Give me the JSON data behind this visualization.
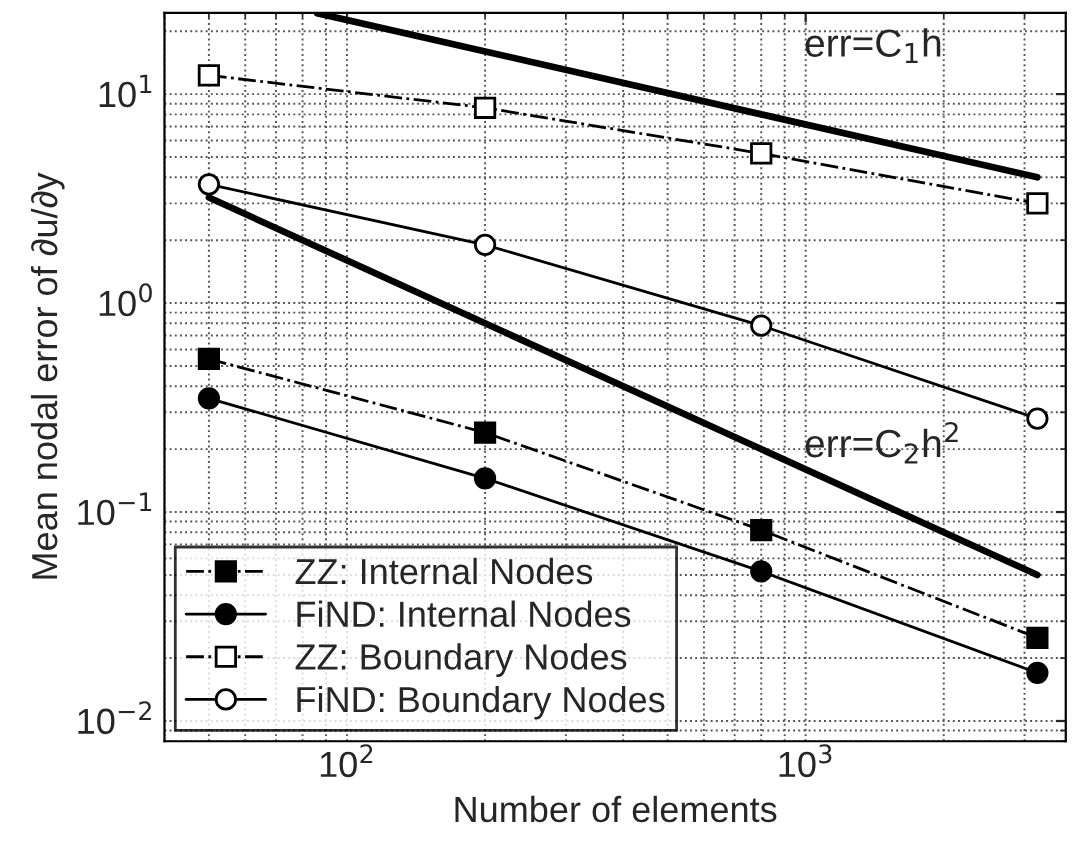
{
  "chart_data": {
    "type": "line",
    "xlabel": "Number of elements",
    "ylabel": "Mean nodal error of ∂u/∂y",
    "log": "xy",
    "grid": true,
    "legend": "bottom left",
    "xlim": [
      40,
      3690
    ],
    "ylim": [
      0.008,
      24.5
    ],
    "xticks": [
      {
        "value": 100,
        "label": "10$^{2}$"
      },
      {
        "value": 1000,
        "label": "10$^{3}$"
      }
    ],
    "yticks": [
      {
        "value": 0.01,
        "label": "10$^{−2}$"
      },
      {
        "value": 0.1,
        "label": "10$^{−1}$"
      },
      {
        "value": 1,
        "label": "10$^{0}$"
      },
      {
        "value": 10,
        "label": "10$^{1}$"
      }
    ],
    "x": [
      50,
      200,
      800,
      3200
    ],
    "series": [
      {
        "name": "ZZ: Internal Nodes",
        "color": "#000000",
        "marker": "square",
        "line_style": "dashdot",
        "values": [
          0.54,
          0.24,
          0.082,
          0.025
        ]
      },
      {
        "name": "FiND: Internal Nodes",
        "color": "#000000",
        "marker": "circle",
        "line_style": "solid",
        "values": [
          0.35,
          0.145,
          0.052,
          0.017
        ]
      },
      {
        "name": "ZZ: Boundary Nodes",
        "color": "#000000",
        "marker": "square",
        "line_style": "dashdot",
        "values": [
          12.3,
          8.6,
          5.2,
          3.0
        ]
      },
      {
        "name": "FiND: Boundary Nodes",
        "color": "#000000",
        "marker": "circle",
        "line_style": "solid",
        "values": [
          3.7,
          1.9,
          0.78,
          0.28
        ]
      },
      {
        "color": "#000000",
        "marker": "none",
        "line_style": "solid",
        "x": [
          86,
          3200
        ],
        "values": [
          24.4,
          4.0
        ]
      },
      {
        "color": "#000000",
        "marker": "none",
        "line_style": "solid",
        "x": [
          50,
          3200
        ],
        "values": [
          3.2,
          0.05
        ]
      }
    ],
    "annotations": [
      "err=C$_{1}$h",
      "err=C$_{2}$h$^{2}$"
    ]
  }
}
